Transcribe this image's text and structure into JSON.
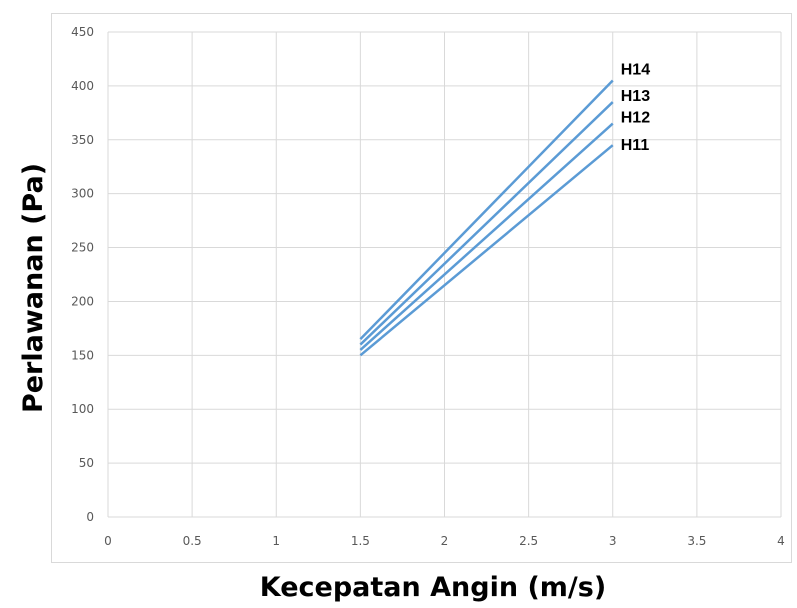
{
  "chart_data": {
    "type": "line",
    "title": "",
    "xlabel": "Kecepatan Angin (m/s)",
    "ylabel": "Perlawanan (Pa)",
    "xlim": [
      0,
      4
    ],
    "ylim": [
      0,
      450
    ],
    "x_ticks": [
      0,
      0.5,
      1,
      1.5,
      2,
      2.5,
      3,
      3.5,
      4
    ],
    "x_tick_labels": [
      "0",
      "0.5",
      "1",
      "1.5",
      "2",
      "2.5",
      "3",
      "3.5",
      "4"
    ],
    "y_ticks": [
      0,
      50,
      100,
      150,
      200,
      250,
      300,
      350,
      400,
      450
    ],
    "y_tick_labels": [
      "0",
      "50",
      "100",
      "150",
      "200",
      "250",
      "300",
      "350",
      "400",
      "450"
    ],
    "grid": true,
    "legend": "none",
    "line_color": "#5b9bd5",
    "series": [
      {
        "name": "H11",
        "x": [
          1.5,
          3
        ],
        "y": [
          150,
          345
        ]
      },
      {
        "name": "H12",
        "x": [
          1.5,
          3
        ],
        "y": [
          155,
          365
        ]
      },
      {
        "name": "H13",
        "x": [
          1.5,
          3
        ],
        "y": [
          160,
          385
        ]
      },
      {
        "name": "H14",
        "x": [
          1.5,
          3
        ],
        "y": [
          165,
          405
        ]
      }
    ]
  }
}
